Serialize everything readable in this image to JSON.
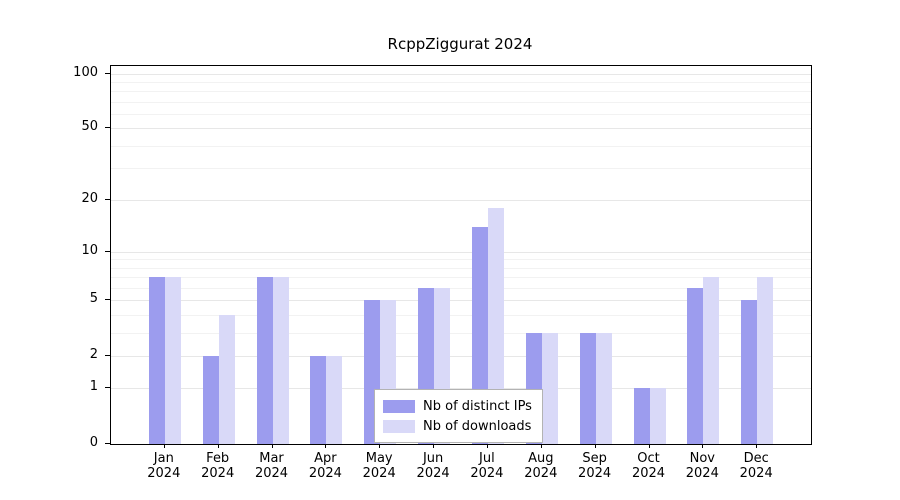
{
  "title": "RcppZiggurat 2024",
  "chart_data": {
    "type": "bar",
    "title": "RcppZiggurat 2024",
    "scale": "log1p",
    "categories": [
      "Jan",
      "Feb",
      "Mar",
      "Apr",
      "May",
      "Jun",
      "Jul",
      "Aug",
      "Sep",
      "Oct",
      "Nov",
      "Dec"
    ],
    "category_year": "2024",
    "series": [
      {
        "name": "Nb of distinct IPs",
        "color": "#9c9cee",
        "values": [
          7,
          2,
          7,
          2,
          5,
          6,
          14,
          3,
          3,
          1,
          6,
          5
        ]
      },
      {
        "name": "Nb of downloads",
        "color": "#d9d9f8",
        "values": [
          7,
          4,
          7,
          2,
          5,
          6,
          18,
          3,
          3,
          1,
          7,
          7
        ]
      }
    ],
    "yticks": [
      0,
      1,
      2,
      5,
      10,
      20,
      50,
      100
    ],
    "minor_gridlines": [
      3,
      4,
      6,
      7,
      8,
      9,
      30,
      40,
      60,
      70,
      80,
      90
    ],
    "ylim": [
      0,
      110
    ],
    "xlabel": "",
    "ylabel": "",
    "grid": "horizontal",
    "legend_position": "bottom-center"
  }
}
